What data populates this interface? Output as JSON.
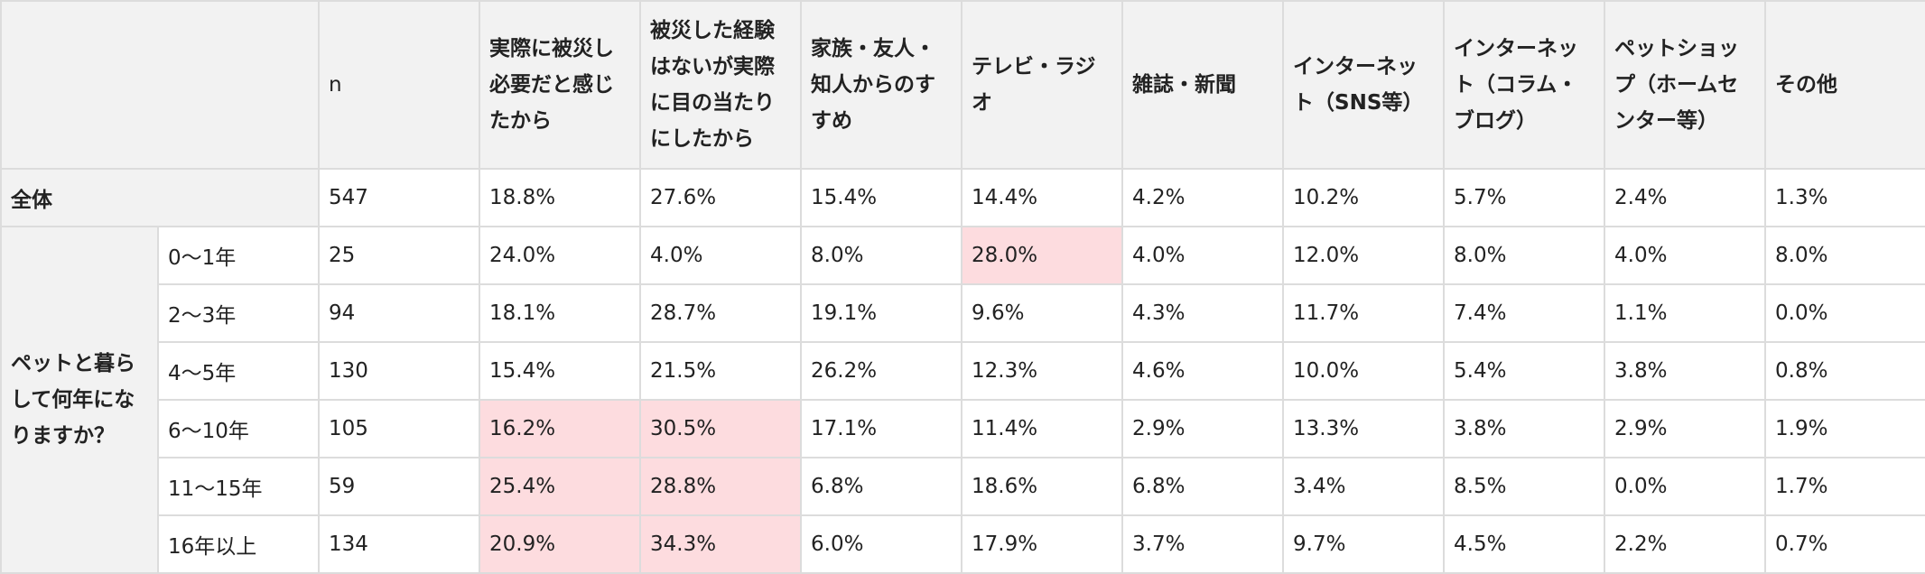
{
  "chart_data": {
    "type": "table",
    "columns": [
      "n",
      "実際に被災し必要だと感じたから",
      "被災した経験はないが実際に目の当たりにしたから",
      "家族・友人・知人からのすすめ",
      "テレビ・ラジオ",
      "雑誌・新聞",
      "インターネット（SNS等）",
      "インターネット（コラム・ブログ）",
      "ペットショップ（ホームセンター等）",
      "その他"
    ],
    "total": {
      "label": "全体",
      "values": [
        "547",
        "18.8%",
        "27.6%",
        "15.4%",
        "14.4%",
        "4.2%",
        "10.2%",
        "5.7%",
        "2.4%",
        "1.3%"
      ]
    },
    "group_label": "ペットと暮らして何年になりますか？",
    "rows": [
      {
        "label": "0〜1年",
        "values": [
          "25",
          "24.0%",
          "4.0%",
          "8.0%",
          "28.0%",
          "4.0%",
          "12.0%",
          "8.0%",
          "4.0%",
          "8.0%"
        ],
        "highlight": [
          4
        ]
      },
      {
        "label": "2〜3年",
        "values": [
          "94",
          "18.1%",
          "28.7%",
          "19.1%",
          "9.6%",
          "4.3%",
          "11.7%",
          "7.4%",
          "1.1%",
          "0.0%"
        ],
        "highlight": []
      },
      {
        "label": "4〜5年",
        "values": [
          "130",
          "15.4%",
          "21.5%",
          "26.2%",
          "12.3%",
          "4.6%",
          "10.0%",
          "5.4%",
          "3.8%",
          "0.8%"
        ],
        "highlight": []
      },
      {
        "label": "6〜10年",
        "values": [
          "105",
          "16.2%",
          "30.5%",
          "17.1%",
          "11.4%",
          "2.9%",
          "13.3%",
          "3.8%",
          "2.9%",
          "1.9%"
        ],
        "highlight": [
          1,
          2
        ]
      },
      {
        "label": "11〜15年",
        "values": [
          "59",
          "25.4%",
          "28.8%",
          "6.8%",
          "18.6%",
          "6.8%",
          "3.4%",
          "8.5%",
          "0.0%",
          "1.7%"
        ],
        "highlight": [
          1,
          2
        ]
      },
      {
        "label": "16年以上",
        "values": [
          "134",
          "20.9%",
          "34.3%",
          "6.0%",
          "17.9%",
          "3.7%",
          "9.7%",
          "4.5%",
          "2.2%",
          "0.7%"
        ],
        "highlight": [
          1,
          2
        ]
      }
    ],
    "colors": {
      "header_bg": "#f2f2f2",
      "highlight": "#fddcdf",
      "border": "#dcdcdc"
    }
  }
}
